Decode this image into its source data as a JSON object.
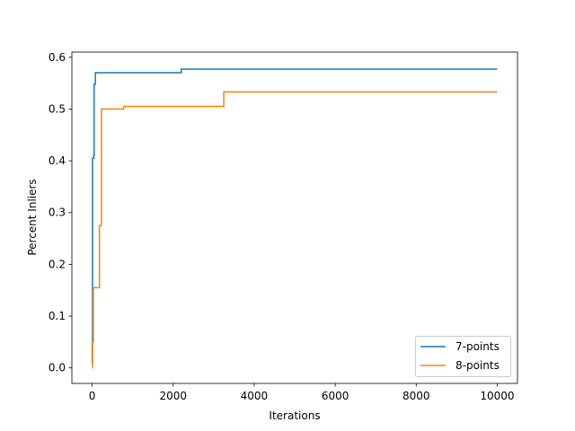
{
  "chart_data": {
    "type": "line",
    "title": "",
    "xlabel": "Iterations",
    "ylabel": "Percent Inliers",
    "xlim": [
      -500,
      10500
    ],
    "ylim": [
      -0.03,
      0.61
    ],
    "xticks": [
      0,
      2000,
      4000,
      6000,
      8000,
      10000
    ],
    "xtick_labels": [
      "0",
      "2000",
      "4000",
      "6000",
      "8000",
      "10000"
    ],
    "yticks": [
      0.0,
      0.1,
      0.2,
      0.3,
      0.4,
      0.5,
      0.6
    ],
    "ytick_labels": [
      "0.0",
      "0.1",
      "0.2",
      "0.3",
      "0.4",
      "0.5",
      "0.6"
    ],
    "grid": false,
    "legend_position": "lower-right",
    "step": "post",
    "series": [
      {
        "name": "7-points",
        "color": "#1f77b4",
        "x": [
          0,
          2,
          10,
          40,
          50,
          80,
          2200,
          10000
        ],
        "y": [
          0.01,
          0.05,
          0.405,
          0.41,
          0.548,
          0.57,
          0.577,
          0.577
        ]
      },
      {
        "name": "8-points",
        "color": "#ff7f0e",
        "x": [
          0,
          10,
          30,
          180,
          230,
          780,
          3250,
          10000
        ],
        "y": [
          0.0,
          0.05,
          0.155,
          0.275,
          0.5,
          0.505,
          0.533,
          0.533
        ]
      }
    ]
  }
}
